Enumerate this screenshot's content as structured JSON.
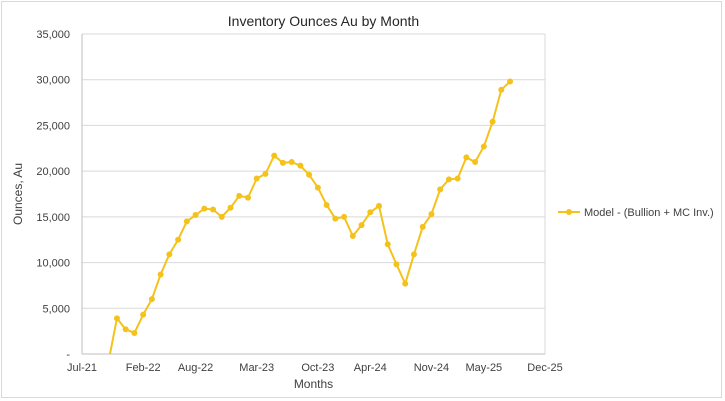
{
  "chart_data": {
    "type": "line",
    "title": "Inventory Ounces Au by Month",
    "xlabel": "Months",
    "ylabel": "Ounces, Au",
    "ylim": [
      0,
      35000
    ],
    "y_ticks": [
      0,
      5000,
      10000,
      15000,
      20000,
      25000,
      30000,
      35000
    ],
    "y_tick_labels": [
      "-",
      "5,000",
      "10,000",
      "15,000",
      "20,000",
      "25,000",
      "30,000",
      "35,000"
    ],
    "x_ticks": [
      "2021-07",
      "2022-02",
      "2022-08",
      "2023-03",
      "2023-10",
      "2024-04",
      "2024-11",
      "2025-05",
      "2025-12"
    ],
    "x_tick_labels": [
      "Jul-21",
      "Feb-22",
      "Aug-22",
      "Mar-23",
      "Oct-23",
      "Apr-24",
      "Nov-24",
      "May-25",
      "Dec-25"
    ],
    "xlim": [
      "2021-07",
      "2025-12"
    ],
    "legend_position": "right",
    "grid": true,
    "series_color": "#f5c21b",
    "series": [
      {
        "name": "Model - (Bullion + MC Inv.)",
        "x": [
          "2021-10",
          "2021-11",
          "2021-12",
          "2022-01",
          "2022-02",
          "2022-03",
          "2022-04",
          "2022-05",
          "2022-06",
          "2022-07",
          "2022-08",
          "2022-09",
          "2022-10",
          "2022-11",
          "2022-12",
          "2023-01",
          "2023-02",
          "2023-03",
          "2023-04",
          "2023-05",
          "2023-06",
          "2023-07",
          "2023-08",
          "2023-09",
          "2023-10",
          "2023-11",
          "2023-12",
          "2024-01",
          "2024-02",
          "2024-03",
          "2024-04",
          "2024-05",
          "2024-06",
          "2024-07",
          "2024-08",
          "2024-09",
          "2024-10",
          "2024-11",
          "2024-12",
          "2025-01",
          "2025-02",
          "2025-03",
          "2025-04",
          "2025-05",
          "2025-06",
          "2025-07",
          "2025-08",
          "2025-09"
        ],
        "values": [
          -1000,
          3900,
          2700,
          2300,
          4300,
          6000,
          8700,
          10900,
          12500,
          14500,
          15200,
          15900,
          15800,
          15000,
          16000,
          17300,
          17100,
          19200,
          19700,
          21700,
          20900,
          21000,
          20600,
          19600,
          18200,
          16300,
          14800,
          15000,
          12900,
          14100,
          15500,
          16200,
          12000,
          9800,
          7700,
          10900,
          13900,
          15300,
          18000,
          19100,
          19200,
          21500,
          21000,
          22700,
          25400,
          28900,
          29800,
          null
        ]
      }
    ]
  }
}
